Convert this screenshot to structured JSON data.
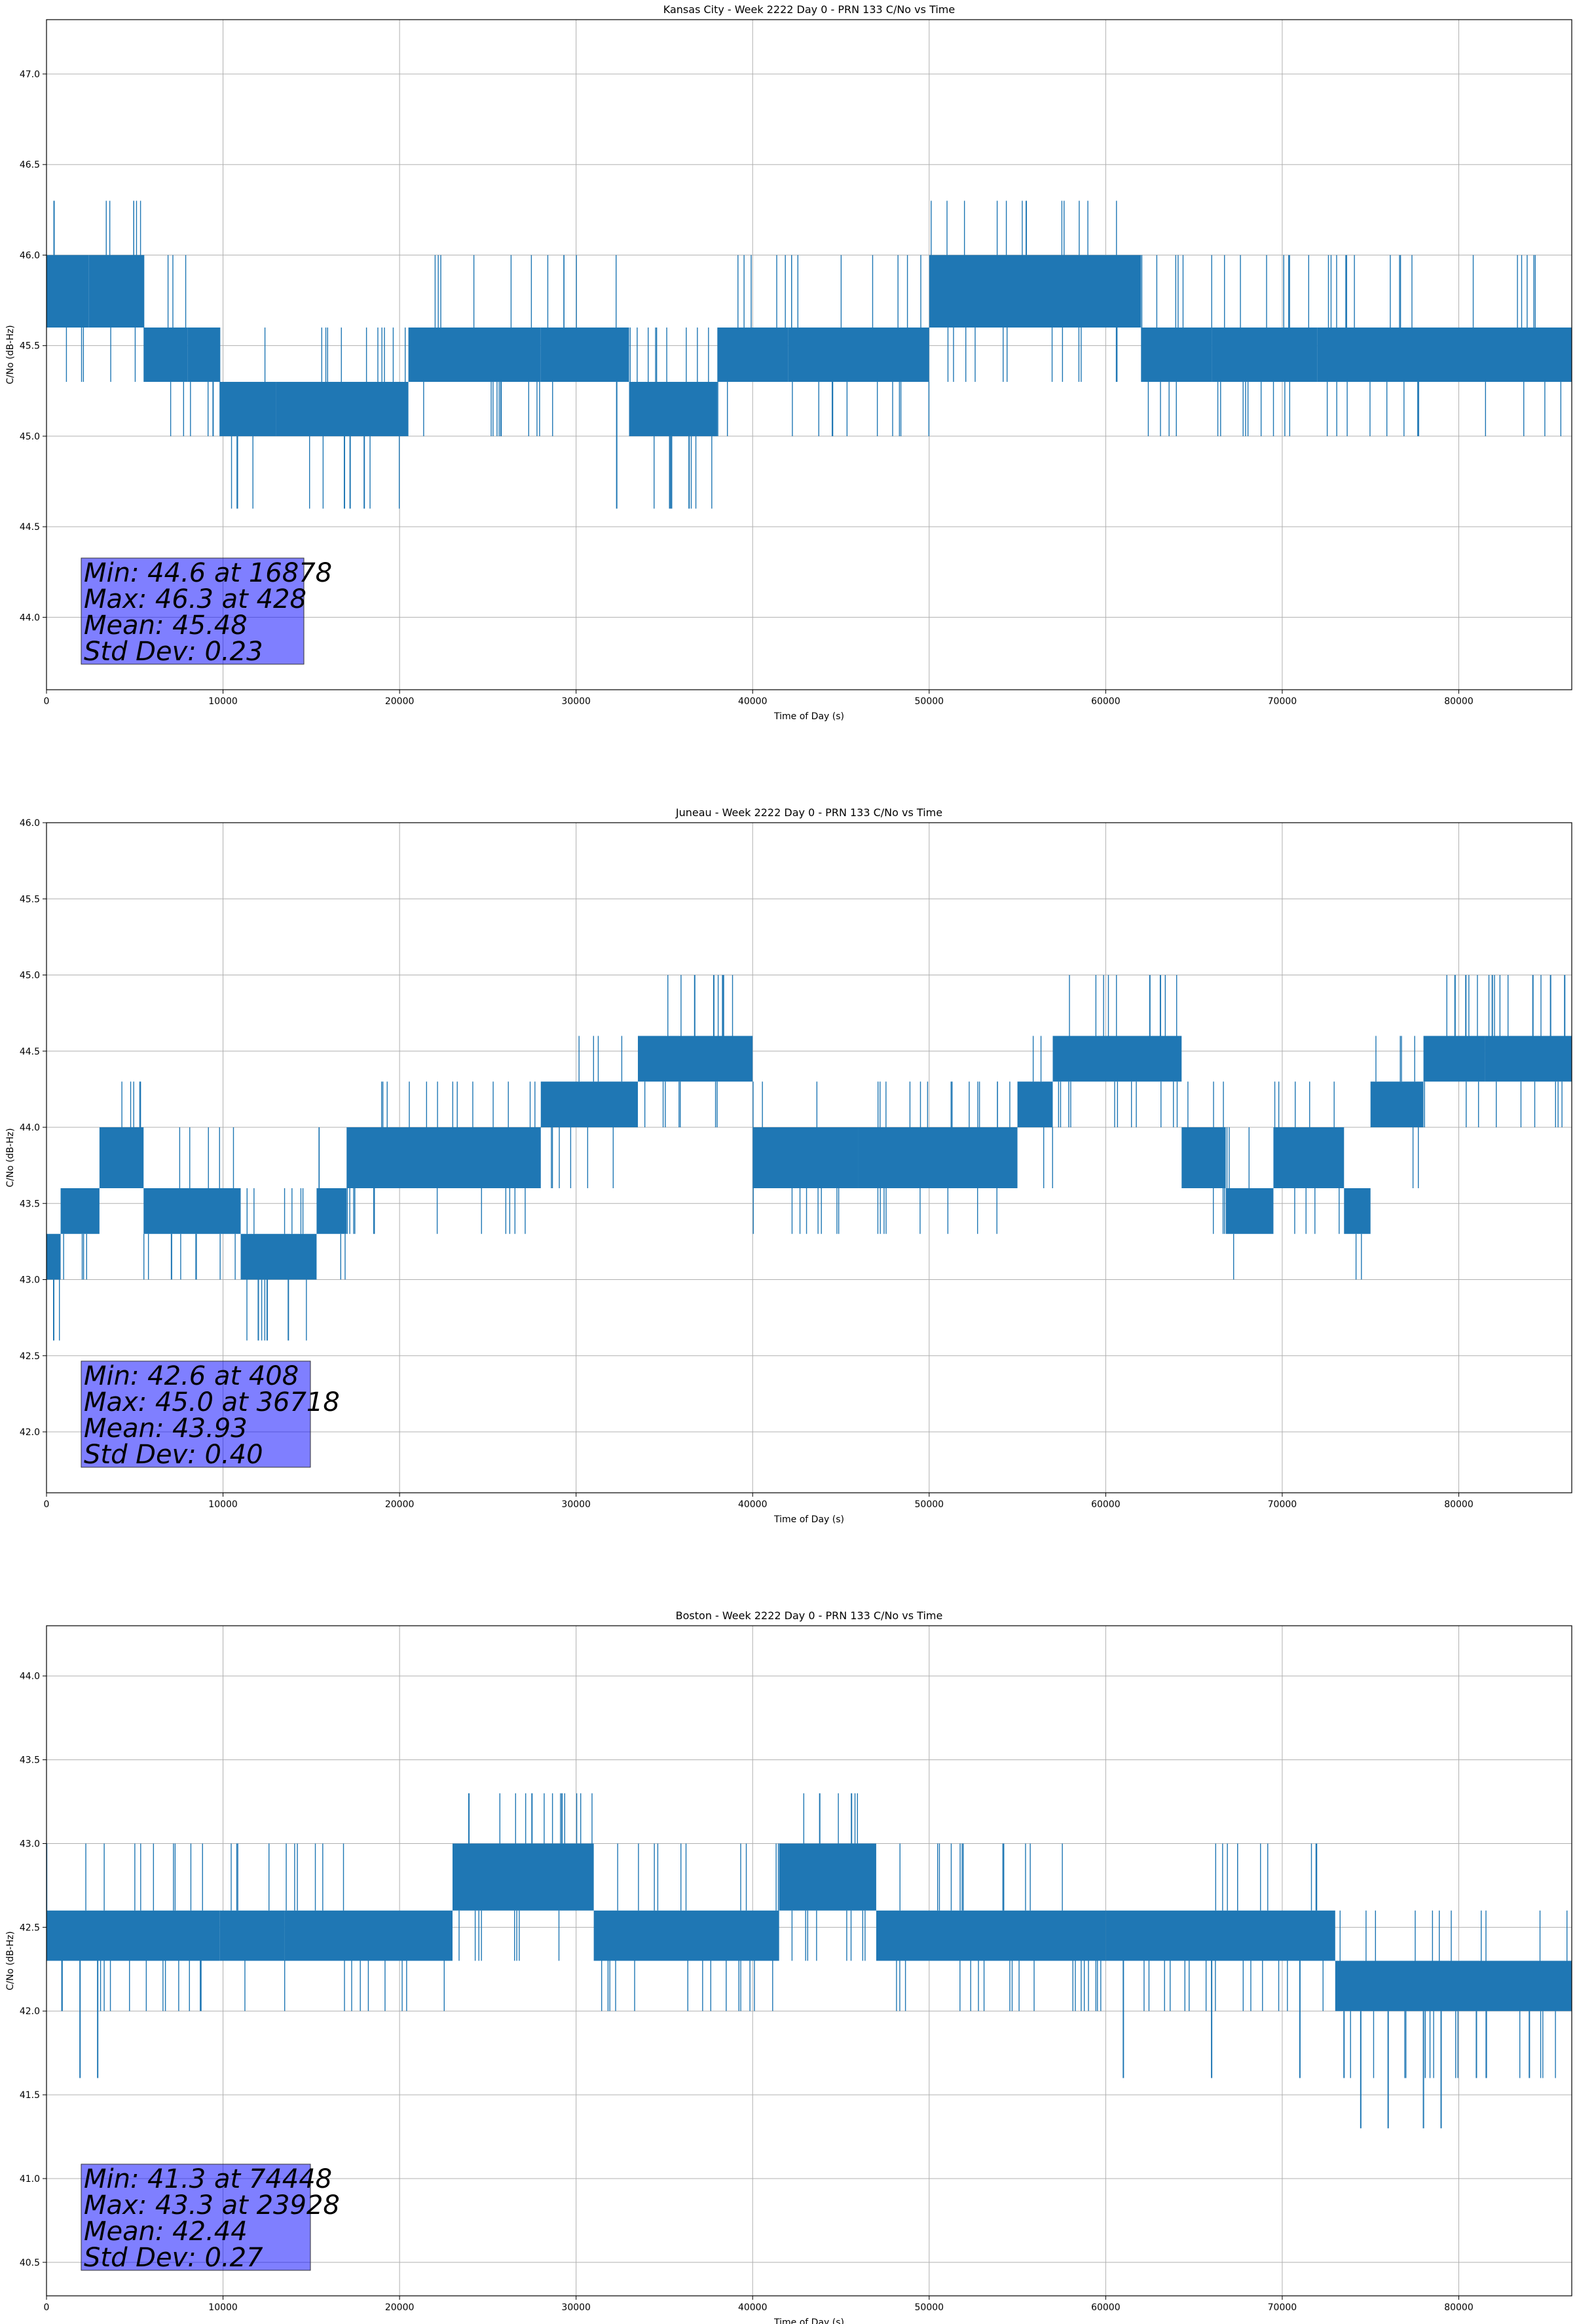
{
  "chart_data": [
    {
      "type": "line",
      "title": "Kansas City - Week 2222 Day 0 - PRN 133 C/No vs Time",
      "xlabel": "Time of Day (s)",
      "ylabel": "C/No (dB-Hz)",
      "xlim": [
        0,
        86400
      ],
      "ylim": [
        43.6,
        47.3
      ],
      "xticks": [
        0,
        10000,
        20000,
        30000,
        40000,
        50000,
        60000,
        70000,
        80000
      ],
      "yticks": [
        "44.0",
        "44.5",
        "45.0",
        "45.5",
        "46.0",
        "46.5",
        "47.0"
      ],
      "grid": true,
      "color": "#1f77b4",
      "levels_db": [
        44.6,
        45.0,
        45.3,
        45.6,
        46.0,
        46.3
      ],
      "segments": [
        {
          "x": [
            0,
            2400
          ],
          "range": [
            45.6,
            46.0
          ]
        },
        {
          "x": [
            2400,
            5500
          ],
          "range": [
            45.6,
            46.0
          ]
        },
        {
          "x": [
            5500,
            8000
          ],
          "range": [
            45.3,
            45.6
          ]
        },
        {
          "x": [
            8000,
            9800
          ],
          "range": [
            45.3,
            45.6
          ]
        },
        {
          "x": [
            9800,
            13000
          ],
          "range": [
            45.0,
            45.3
          ]
        },
        {
          "x": [
            13000,
            20500
          ],
          "range": [
            45.0,
            45.3
          ]
        },
        {
          "x": [
            20500,
            28000
          ],
          "range": [
            45.3,
            45.6
          ]
        },
        {
          "x": [
            28000,
            33000
          ],
          "range": [
            45.3,
            45.6
          ]
        },
        {
          "x": [
            33000,
            38000
          ],
          "range": [
            45.0,
            45.3
          ]
        },
        {
          "x": [
            38000,
            42000
          ],
          "range": [
            45.3,
            45.6
          ]
        },
        {
          "x": [
            42000,
            50000
          ],
          "range": [
            45.3,
            45.6
          ]
        },
        {
          "x": [
            50000,
            62000
          ],
          "range": [
            45.6,
            46.0
          ]
        },
        {
          "x": [
            62000,
            66000
          ],
          "range": [
            45.3,
            45.6
          ]
        },
        {
          "x": [
            66000,
            72000
          ],
          "range": [
            45.3,
            45.6
          ]
        },
        {
          "x": [
            72000,
            86400
          ],
          "range": [
            45.3,
            45.6
          ]
        }
      ],
      "spikes": [
        {
          "x": 428,
          "y": 46.3
        },
        {
          "x": 55500,
          "y": 46.3
        },
        {
          "x": 16878,
          "y": 44.6
        },
        {
          "x": 17200,
          "y": 44.6
        },
        {
          "x": 18000,
          "y": 44.6
        },
        {
          "x": 32300,
          "y": 44.6
        },
        {
          "x": 35300,
          "y": 44.6
        },
        {
          "x": 36400,
          "y": 44.6
        }
      ],
      "stats": {
        "min": "Min: 44.6 at 16878",
        "max": "Max: 46.3 at 428",
        "mean": "Mean: 45.48",
        "std": "Std Dev: 0.23"
      }
    },
    {
      "type": "line",
      "title": "Juneau - Week 2222 Day 0 - PRN 133 C/No vs Time",
      "xlabel": "Time of Day (s)",
      "ylabel": "C/No (dB-Hz)",
      "xlim": [
        0,
        86400
      ],
      "ylim": [
        41.6,
        46.0
      ],
      "xticks": [
        0,
        10000,
        20000,
        30000,
        40000,
        50000,
        60000,
        70000,
        80000
      ],
      "yticks": [
        "42.0",
        "42.5",
        "43.0",
        "43.5",
        "44.0",
        "44.5",
        "45.0",
        "45.5",
        "46.0"
      ],
      "grid": true,
      "color": "#1f77b4",
      "levels_db": [
        42.6,
        43.0,
        43.3,
        43.6,
        44.0,
        44.3,
        44.6,
        45.0
      ],
      "segments": [
        {
          "x": [
            0,
            800
          ],
          "range": [
            43.0,
            43.3
          ]
        },
        {
          "x": [
            800,
            3000
          ],
          "range": [
            43.3,
            43.6
          ]
        },
        {
          "x": [
            3000,
            5500
          ],
          "range": [
            43.6,
            44.0
          ]
        },
        {
          "x": [
            5500,
            11000
          ],
          "range": [
            43.3,
            43.6
          ]
        },
        {
          "x": [
            11000,
            15300
          ],
          "range": [
            43.0,
            43.3
          ]
        },
        {
          "x": [
            15300,
            17000
          ],
          "range": [
            43.3,
            43.6
          ]
        },
        {
          "x": [
            17000,
            28000
          ],
          "range": [
            43.6,
            44.0
          ]
        },
        {
          "x": [
            28000,
            33500
          ],
          "range": [
            44.0,
            44.3
          ]
        },
        {
          "x": [
            33500,
            40000
          ],
          "range": [
            44.3,
            44.6
          ]
        },
        {
          "x": [
            40000,
            46000
          ],
          "range": [
            43.6,
            44.0
          ]
        },
        {
          "x": [
            46000,
            55000
          ],
          "range": [
            43.6,
            44.0
          ]
        },
        {
          "x": [
            55000,
            57000
          ],
          "range": [
            44.0,
            44.3
          ]
        },
        {
          "x": [
            57000,
            64300
          ],
          "range": [
            44.3,
            44.6
          ]
        },
        {
          "x": [
            64300,
            66800
          ],
          "range": [
            43.6,
            44.0
          ]
        },
        {
          "x": [
            66800,
            69500
          ],
          "range": [
            43.3,
            43.6
          ]
        },
        {
          "x": [
            69500,
            73500
          ],
          "range": [
            43.6,
            44.0
          ]
        },
        {
          "x": [
            73500,
            75000
          ],
          "range": [
            43.3,
            43.6
          ]
        },
        {
          "x": [
            75000,
            78000
          ],
          "range": [
            44.0,
            44.3
          ]
        },
        {
          "x": [
            78000,
            81500
          ],
          "range": [
            44.3,
            44.6
          ]
        },
        {
          "x": [
            81500,
            86400
          ],
          "range": [
            44.3,
            44.6
          ]
        }
      ],
      "spikes": [
        {
          "x": 408,
          "y": 42.6
        },
        {
          "x": 12000,
          "y": 42.6
        },
        {
          "x": 12500,
          "y": 42.6
        },
        {
          "x": 13700,
          "y": 42.6
        },
        {
          "x": 36718,
          "y": 45.0
        },
        {
          "x": 37800,
          "y": 45.0
        },
        {
          "x": 38300,
          "y": 45.0
        },
        {
          "x": 62500,
          "y": 45.0
        },
        {
          "x": 63100,
          "y": 45.0
        },
        {
          "x": 80400,
          "y": 45.0
        },
        {
          "x": 81900,
          "y": 45.0
        },
        {
          "x": 84200,
          "y": 45.0
        },
        {
          "x": 85200,
          "y": 45.0
        },
        {
          "x": 86000,
          "y": 45.0
        }
      ],
      "stats": {
        "min": "Min: 42.6 at 408",
        "max": "Max: 45.0 at 36718",
        "mean": "Mean: 43.93",
        "std": "Std Dev: 0.40"
      }
    },
    {
      "type": "line",
      "title": "Boston - Week 2222 Day 0 - PRN 133 C/No vs Time",
      "xlabel": "Time of Day (s)",
      "ylabel": "C/No (dB-Hz)",
      "xlim": [
        0,
        86400
      ],
      "ylim": [
        40.3,
        44.3
      ],
      "xticks": [
        0,
        10000,
        20000,
        30000,
        40000,
        50000,
        60000,
        70000,
        80000
      ],
      "yticks": [
        "40.5",
        "41.0",
        "41.5",
        "42.0",
        "42.5",
        "43.0",
        "43.5",
        "44.0"
      ],
      "grid": true,
      "color": "#1f77b4",
      "levels_db": [
        41.3,
        41.6,
        42.0,
        42.3,
        42.6,
        43.0,
        43.3
      ],
      "segments": [
        {
          "x": [
            0,
            9800
          ],
          "range": [
            42.3,
            42.6
          ]
        },
        {
          "x": [
            9800,
            13500
          ],
          "range": [
            42.3,
            42.6
          ]
        },
        {
          "x": [
            13500,
            23000
          ],
          "range": [
            42.3,
            42.6
          ]
        },
        {
          "x": [
            23000,
            31000
          ],
          "range": [
            42.6,
            43.0
          ]
        },
        {
          "x": [
            31000,
            41500
          ],
          "range": [
            42.3,
            42.6
          ]
        },
        {
          "x": [
            41500,
            47000
          ],
          "range": [
            42.6,
            43.0
          ]
        },
        {
          "x": [
            47000,
            60000
          ],
          "range": [
            42.3,
            42.6
          ]
        },
        {
          "x": [
            60000,
            73000
          ],
          "range": [
            42.3,
            42.6
          ]
        },
        {
          "x": [
            73000,
            86400
          ],
          "range": [
            42.0,
            42.3
          ]
        }
      ],
      "spikes": [
        {
          "x": 1900,
          "y": 41.6
        },
        {
          "x": 2900,
          "y": 41.6
        },
        {
          "x": 23928,
          "y": 43.3
        },
        {
          "x": 27500,
          "y": 43.3
        },
        {
          "x": 29200,
          "y": 43.3
        },
        {
          "x": 43800,
          "y": 43.3
        },
        {
          "x": 45600,
          "y": 43.3
        },
        {
          "x": 74448,
          "y": 41.3
        },
        {
          "x": 76000,
          "y": 41.3
        },
        {
          "x": 78000,
          "y": 41.3
        },
        {
          "x": 79000,
          "y": 41.3
        },
        {
          "x": 61000,
          "y": 41.6
        },
        {
          "x": 66000,
          "y": 41.6
        },
        {
          "x": 71000,
          "y": 41.6
        },
        {
          "x": 73500,
          "y": 41.6
        },
        {
          "x": 81000,
          "y": 41.6
        },
        {
          "x": 84000,
          "y": 41.6
        }
      ],
      "stats": {
        "min": "Min: 41.3 at 74448",
        "max": "Max: 43.3 at 23928",
        "mean": "Mean: 42.44",
        "std": "Std Dev: 0.27"
      }
    }
  ]
}
